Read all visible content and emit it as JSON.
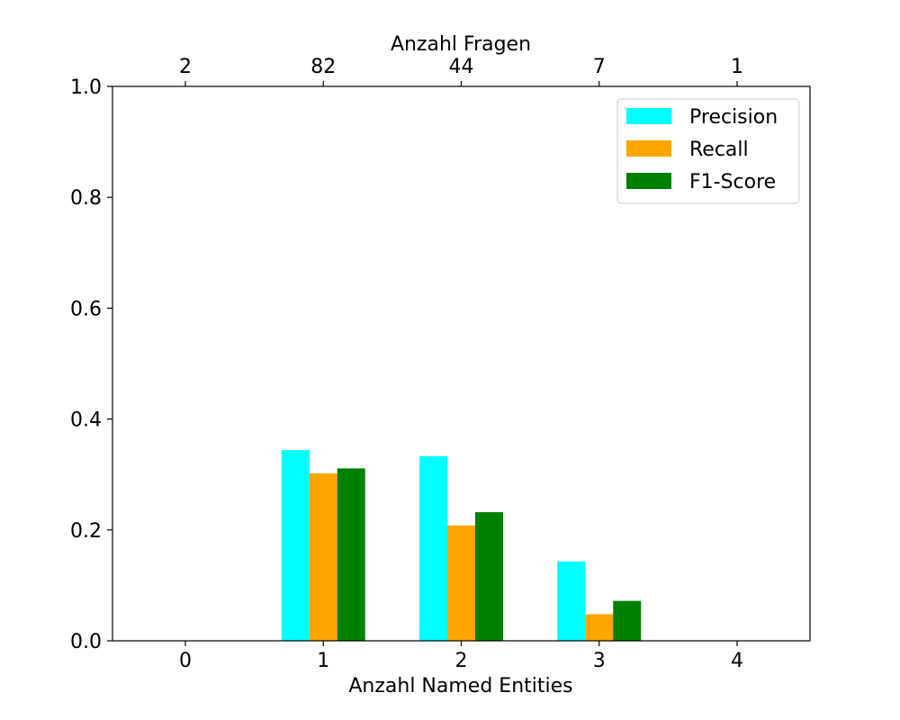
{
  "chart_data": {
    "type": "bar",
    "categories": [
      "0",
      "1",
      "2",
      "3",
      "4"
    ],
    "xlabel": "Anzahl Named Entities",
    "top_xlabel": "Anzahl Fragen",
    "top_ticks": [
      "2",
      "82",
      "44",
      "7",
      "1"
    ],
    "ylabel": "",
    "ylim": [
      0,
      1.0
    ],
    "yticks": [
      "0.0",
      "0.2",
      "0.4",
      "0.6",
      "0.8",
      "1.0"
    ],
    "grid": false,
    "legend_position": "top-right",
    "series": [
      {
        "name": "Precision",
        "color": "#00ffff",
        "values": [
          0,
          0.344,
          0.333,
          0.143,
          0
        ]
      },
      {
        "name": "Recall",
        "color": "#ffa500",
        "values": [
          0,
          0.302,
          0.208,
          0.048,
          0
        ]
      },
      {
        "name": "F1-Score",
        "color": "#008000",
        "values": [
          0,
          0.311,
          0.232,
          0.072,
          0
        ]
      }
    ]
  }
}
